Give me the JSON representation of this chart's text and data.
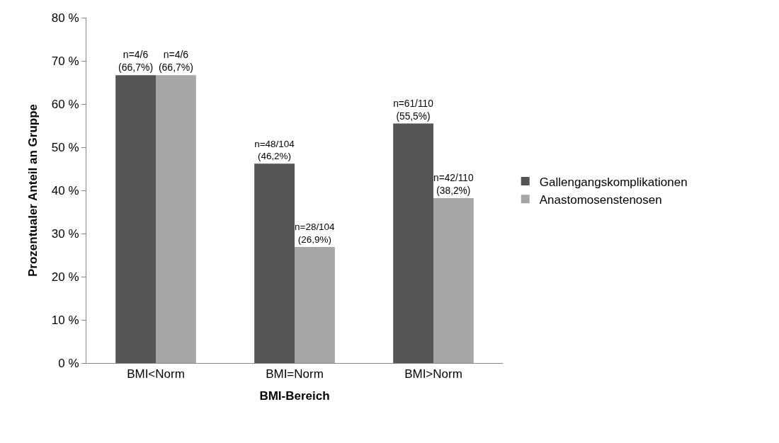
{
  "chart_data": {
    "type": "bar",
    "xlabel": "BMI-Bereich",
    "ylabel": "Prozentualer Anteil an Gruppe",
    "categories": [
      "BMI<Norm",
      "BMI=Norm",
      "BMI>Norm"
    ],
    "series": [
      {
        "name": "Gallengangskomplikationen",
        "color": "#555555",
        "values": [
          66.7,
          46.2,
          55.5
        ],
        "value_labels": [
          "n=4/6\n(66,7%)",
          "n=48/104\n(46,2%)",
          "n=61/110\n(55,5%)"
        ]
      },
      {
        "name": "Anastomosenstenosen",
        "color": "#a6a6a6",
        "values": [
          66.7,
          26.9,
          38.2
        ],
        "value_labels": [
          "n=4/6\n(66,7%)",
          "n=28/104\n(26,9%)",
          "n=42/110\n(38,2%)"
        ]
      }
    ],
    "ylim": [
      0,
      80
    ],
    "yticks": [
      {
        "value": 0,
        "label": "0 %"
      },
      {
        "value": 10,
        "label": "10 %"
      },
      {
        "value": 20,
        "label": "20 %"
      },
      {
        "value": 30,
        "label": "30 %"
      },
      {
        "value": 40,
        "label": "40 %"
      },
      {
        "value": 50,
        "label": "50 %"
      },
      {
        "value": 60,
        "label": "60 %"
      },
      {
        "value": 70,
        "label": "70 %"
      },
      {
        "value": 80,
        "label": "80 %"
      }
    ],
    "legend": "right"
  }
}
